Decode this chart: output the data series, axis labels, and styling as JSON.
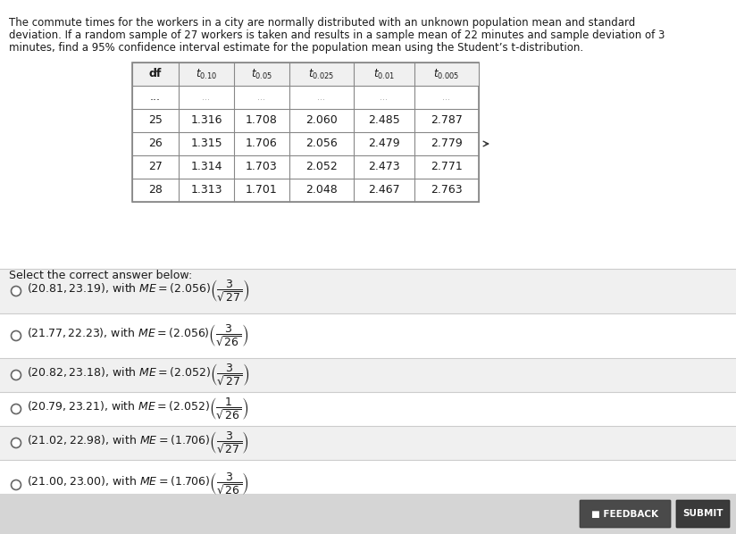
{
  "title_lines": [
    "The commute times for the workers in a city are normally distributed with an unknown population mean and standard",
    "deviation. If a random sample of 27 workers is taken and results in a sample mean of 22 minutes and sample deviation of 3",
    "minutes, find a 95% confidence interval estimate for the population mean using the Student’s t-distribution."
  ],
  "table_headers": [
    "df",
    "t_{0.10}",
    "t_{0.05}",
    "t_{0.025}",
    "t_{0.01}",
    "t_{0.005}"
  ],
  "table_dot_row": [
    "...",
    "...",
    "...",
    "...",
    "...",
    "..."
  ],
  "table_rows": [
    [
      "25",
      "1.316",
      "1.708",
      "2.060",
      "2.485",
      "2.787"
    ],
    [
      "26",
      "1.315",
      "1.706",
      "2.056",
      "2.479",
      "2.779"
    ],
    [
      "27",
      "1.314",
      "1.703",
      "2.052",
      "2.473",
      "2.771"
    ],
    [
      "28",
      "1.313",
      "1.701",
      "2.048",
      "2.467",
      "2.763"
    ]
  ],
  "select_text": "Select the correct answer below:",
  "option_intervals": [
    "(21.00, 23.00)",
    "(21.02, 22.98)",
    "(20.79, 23.21)",
    "(20.82, 23.18)",
    "(21.77, 22.23)",
    "(20.81, 23.19)"
  ],
  "option_me_parts": [
    [
      "(1.706)",
      "3",
      "26"
    ],
    [
      "(1.706)",
      "3",
      "27"
    ],
    [
      "(2.052)",
      "1",
      "26"
    ],
    [
      "(2.052)",
      "3",
      "27"
    ],
    [
      "(2.056)",
      "3",
      "26"
    ],
    [
      "(2.056)",
      "3",
      "27"
    ]
  ],
  "bg_top": "#e8e8e8",
  "bg_white": "#ffffff",
  "bg_options_alt": "#efefef",
  "bg_bottom": "#d0d0d0",
  "line_color": "#cccccc",
  "text_color": "#1a1a1a",
  "table_border_color": "#888888",
  "feedback_color": "#4a4a4a",
  "submit_color": "#3a3a3a"
}
